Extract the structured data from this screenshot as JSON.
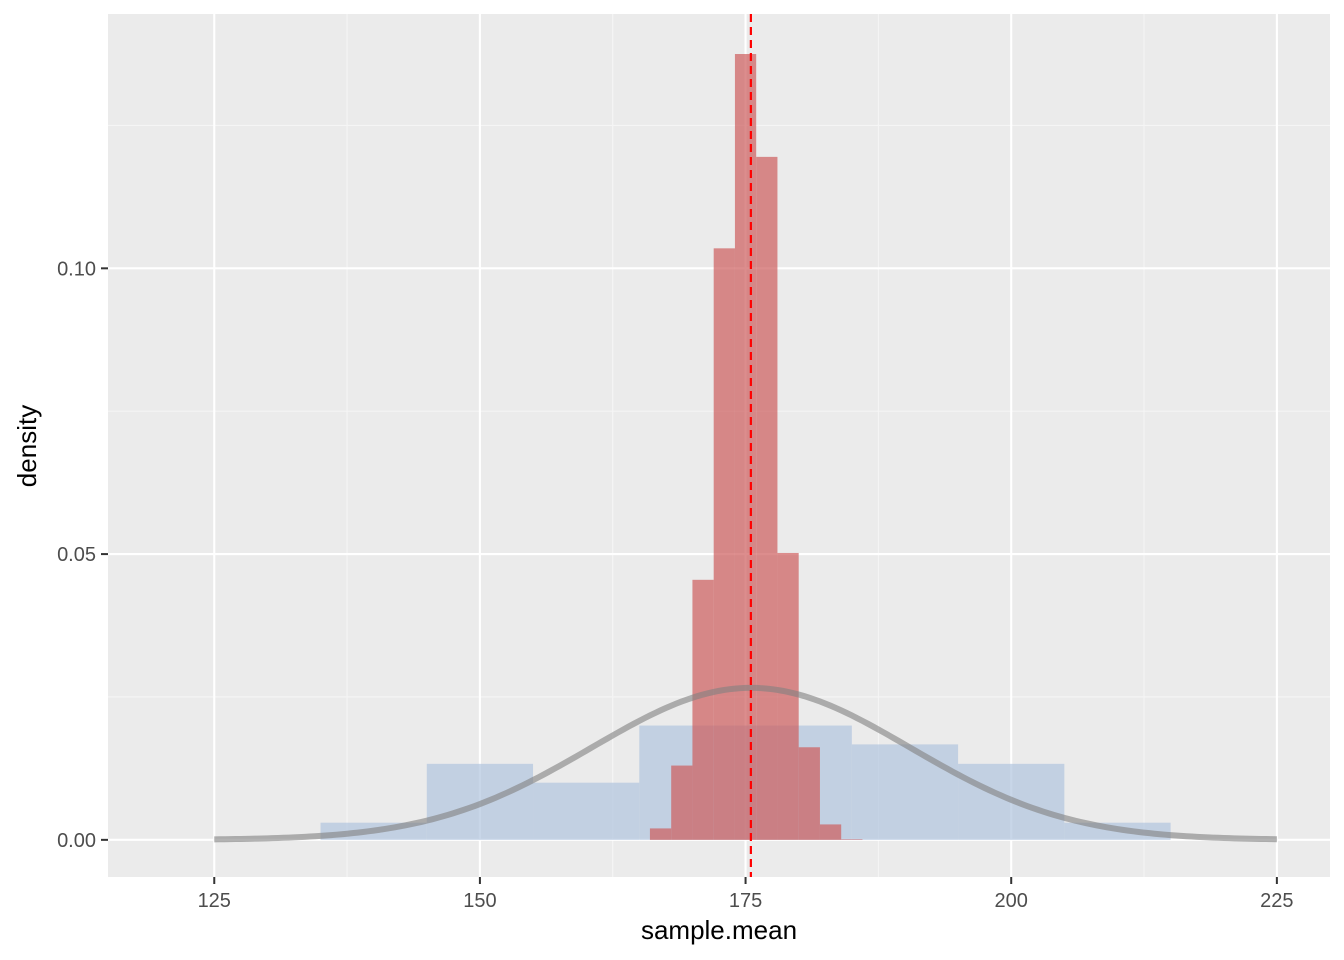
{
  "chart_data": {
    "type": "bar",
    "xlabel": "sample.mean",
    "ylabel": "density",
    "xlim": [
      115,
      230
    ],
    "ylim": [
      -0.0065,
      0.1445
    ],
    "x_ticks": [
      125,
      150,
      175,
      200,
      225
    ],
    "x_tick_labels": [
      "125",
      "150",
      "175",
      "200",
      "225"
    ],
    "y_ticks": [
      0.0,
      0.05,
      0.1
    ],
    "y_tick_labels": [
      "0.00",
      "0.05",
      "0.10"
    ],
    "grid": true,
    "series": [
      {
        "kind": "histogram",
        "color": "#b0c4de",
        "opacity": 0.7,
        "bins": [
          {
            "x0": 135,
            "x1": 145,
            "density": 0.003
          },
          {
            "x0": 145,
            "x1": 155,
            "density": 0.0133
          },
          {
            "x0": 155,
            "x1": 165,
            "density": 0.01
          },
          {
            "x0": 165,
            "x1": 175,
            "density": 0.02
          },
          {
            "x0": 175,
            "x1": 185,
            "density": 0.02
          },
          {
            "x0": 185,
            "x1": 195,
            "density": 0.0167
          },
          {
            "x0": 195,
            "x1": 205,
            "density": 0.0133
          },
          {
            "x0": 205,
            "x1": 215,
            "density": 0.003
          }
        ]
      },
      {
        "kind": "histogram",
        "color": "#cd5c5c",
        "opacity": 0.7,
        "bins": [
          {
            "x0": 166,
            "x1": 168,
            "density": 0.002
          },
          {
            "x0": 168,
            "x1": 170,
            "density": 0.013
          },
          {
            "x0": 170,
            "x1": 172,
            "density": 0.0455
          },
          {
            "x0": 172,
            "x1": 174,
            "density": 0.1035
          },
          {
            "x0": 174,
            "x1": 176,
            "density": 0.1375
          },
          {
            "x0": 176,
            "x1": 178,
            "density": 0.1195
          },
          {
            "x0": 178,
            "x1": 180,
            "density": 0.0502
          },
          {
            "x0": 180,
            "x1": 182,
            "density": 0.0162
          },
          {
            "x0": 182,
            "x1": 184,
            "density": 0.0027
          },
          {
            "x0": 184,
            "x1": 186,
            "density": 0.0001
          }
        ]
      },
      {
        "kind": "normal_curve",
        "color": "#808080",
        "mean": 175.5,
        "sd": 15.0,
        "x_range": [
          125,
          225
        ]
      },
      {
        "kind": "vline",
        "color": "#ff0000",
        "x": 175.5,
        "linetype": "dashed"
      }
    ]
  }
}
